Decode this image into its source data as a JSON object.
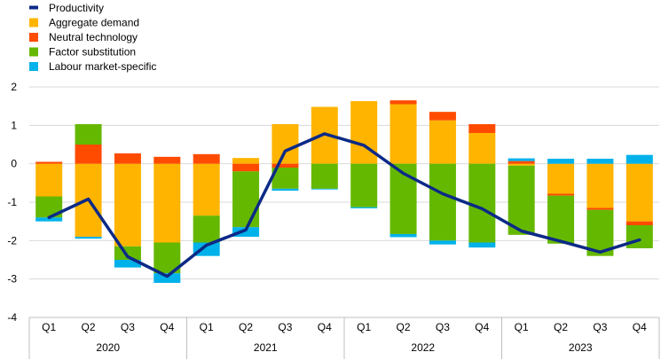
{
  "chart_data": {
    "type": "bar",
    "stacked": true,
    "quarters": [
      "Q1",
      "Q2",
      "Q3",
      "Q4",
      "Q1",
      "Q2",
      "Q3",
      "Q4",
      "Q1",
      "Q2",
      "Q3",
      "Q4",
      "Q1",
      "Q2",
      "Q3",
      "Q4"
    ],
    "years": [
      "2020",
      "2021",
      "2022",
      "2023"
    ],
    "ylim": [
      -4,
      2
    ],
    "yticks": [
      "2",
      "1",
      "0",
      "-1",
      "-2",
      "-3",
      "-4"
    ],
    "grid": true,
    "legend_position": "top-left",
    "legend": [
      {
        "key": "productivity",
        "label": "Productivity",
        "color": "#0c2a86",
        "kind": "line"
      },
      {
        "key": "aggregate_demand",
        "label": "Aggregate demand",
        "color": "#ffb400",
        "kind": "bar"
      },
      {
        "key": "neutral_technology",
        "label": "Neutral technology",
        "color": "#ff4b00",
        "kind": "bar"
      },
      {
        "key": "factor_substitution",
        "label": "Factor substitution",
        "color": "#65b800",
        "kind": "bar"
      },
      {
        "key": "labour_market_specific",
        "label": "Labour market-specific",
        "color": "#00b1ea",
        "kind": "bar"
      }
    ],
    "series": {
      "aggregate_demand": [
        -0.85,
        -1.9,
        -2.15,
        -2.05,
        -1.35,
        0.15,
        1.03,
        1.48,
        1.63,
        1.55,
        1.13,
        0.8,
        -0.05,
        -0.78,
        -1.15,
        -1.5
      ],
      "neutral_technology": [
        0.05,
        0.5,
        0.27,
        0.18,
        0.25,
        -0.2,
        -0.1,
        0.0,
        0.0,
        0.1,
        0.22,
        0.23,
        0.07,
        -0.05,
        -0.05,
        -0.1
      ],
      "factor_substitution": [
        -0.55,
        0.53,
        -0.35,
        -0.8,
        -0.7,
        -1.45,
        -0.55,
        -0.65,
        -1.13,
        -1.83,
        -2.0,
        -2.05,
        -1.8,
        -1.25,
        -1.2,
        -0.6
      ],
      "labour_market_specific": [
        -0.1,
        -0.05,
        -0.2,
        -0.25,
        -0.35,
        -0.25,
        -0.05,
        -0.02,
        -0.03,
        -0.08,
        -0.1,
        -0.13,
        0.07,
        0.13,
        0.13,
        0.23
      ],
      "productivity": [
        -1.4,
        -0.92,
        -2.42,
        -2.93,
        -2.12,
        -1.72,
        0.33,
        0.78,
        0.48,
        -0.25,
        -0.78,
        -1.17,
        -1.75,
        -2.02,
        -2.3,
        -1.98
      ]
    }
  }
}
